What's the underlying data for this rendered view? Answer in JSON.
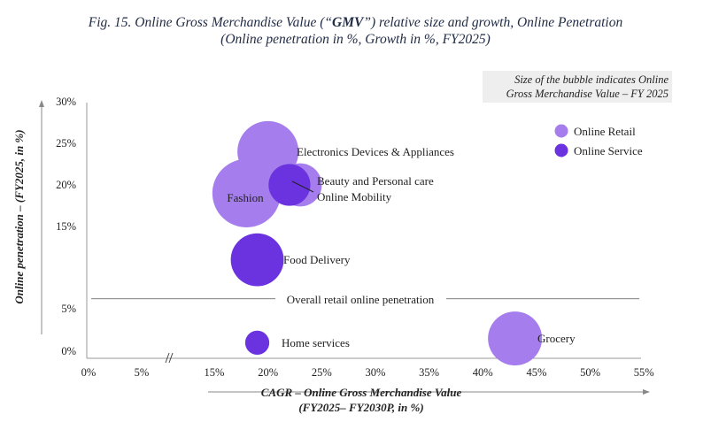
{
  "title": {
    "line1_prefix": "Fig. 15. Online Gross Merchandise Value (“",
    "line1_bold": "GMV",
    "line1_suffix": "”) relative size and growth, Online Penetration",
    "line2": "(Online penetration in %, Growth in %, FY2025)"
  },
  "note": {
    "line1": "Size of the bubble indicates Online",
    "line2": "Gross Merchandise Value  – FY 2025"
  },
  "colors": {
    "online_retail": "#a57ded",
    "online_service": "#6b33df",
    "axis": "#888888"
  },
  "chart_data": {
    "type": "bubble",
    "xlabel_line1": "CAGR – Online Gross Merchandise Value",
    "xlabel_line2": "(FY2025– FY2030P, in %)",
    "ylabel": "Online penetration  – (FY2025, in %)",
    "x_ticks": [
      "0%",
      "5%",
      "15%",
      "20%",
      "25%",
      "30%",
      "35%",
      "40%",
      "45%",
      "50%",
      "55%"
    ],
    "y_ticks": [
      "0%",
      "5%",
      "15%",
      "20%",
      "25%",
      "30%"
    ],
    "legend": [
      {
        "name": "Online Retail",
        "key": "online_retail"
      },
      {
        "name": "Online Service",
        "key": "online_service"
      }
    ],
    "reference_line": {
      "label": "Overall retail online penetration",
      "value": 6.3
    },
    "points": [
      {
        "name": "Fashion",
        "x": 18,
        "y": 19,
        "size": 40,
        "category": "online_retail",
        "label_inside": true
      },
      {
        "name": "Electronics Devices & Appliances",
        "x": 20,
        "y": 24,
        "size": 32,
        "category": "online_retail"
      },
      {
        "name": "Beauty and Personal care",
        "x": 23,
        "y": 20,
        "size": 16,
        "category": "online_retail"
      },
      {
        "name": "Online Mobility",
        "x": 22,
        "y": 20,
        "size": 15,
        "category": "online_service"
      },
      {
        "name": "Food Delivery",
        "x": 19,
        "y": 11,
        "size": 24,
        "category": "online_service"
      },
      {
        "name": "Home services",
        "x": 19,
        "y": 1,
        "size": 5,
        "category": "online_service"
      },
      {
        "name": "Grocery",
        "x": 43,
        "y": 1.5,
        "size": 25,
        "category": "online_retail"
      }
    ]
  }
}
